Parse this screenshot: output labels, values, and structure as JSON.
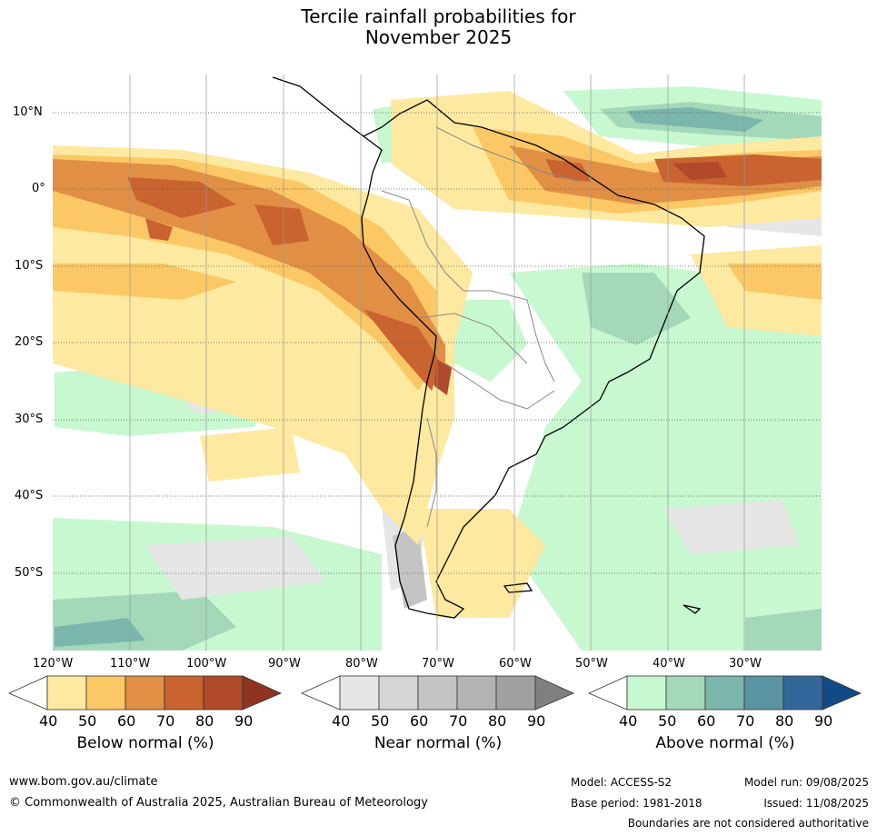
{
  "title": {
    "line1": "Tercile rainfall probabilities for",
    "line2": "November 2025"
  },
  "map": {
    "lat_labels": [
      "10°N",
      "0°",
      "10°S",
      "20°S",
      "30°S",
      "40°S",
      "50°S"
    ],
    "lon_labels": [
      "120°W",
      "110°W",
      "100°W",
      "90°W",
      "80°W",
      "70°W",
      "60°W",
      "50°W",
      "40°W",
      "30°W"
    ],
    "lon_range": [
      -120,
      -20
    ],
    "lat_range": [
      -60,
      15
    ]
  },
  "colorbars": [
    {
      "label": "Below normal (%)",
      "ticks": [
        "40",
        "50",
        "60",
        "70",
        "80",
        "90"
      ],
      "colors": [
        "#ffffff",
        "#fde9a0",
        "#fbc865",
        "#e08f45",
        "#c9632f",
        "#b04a2a",
        "#8e3420"
      ]
    },
    {
      "label": "Near normal (%)",
      "ticks": [
        "40",
        "50",
        "60",
        "70",
        "80",
        "90"
      ],
      "colors": [
        "#ffffff",
        "#e6e6e6",
        "#d5d5d5",
        "#c4c4c4",
        "#b3b3b3",
        "#a0a0a0",
        "#808080"
      ]
    },
    {
      "label": "Above normal (%)",
      "ticks": [
        "40",
        "50",
        "60",
        "70",
        "80",
        "90"
      ],
      "colors": [
        "#ffffff",
        "#c7f8cf",
        "#a3d9b9",
        "#7ab6ac",
        "#5a93a1",
        "#336699",
        "#124a85"
      ]
    }
  ],
  "footer": {
    "website": "www.bom.gov.au/climate",
    "copyright": "© Commonwealth of Australia 2025, Australian Bureau of Meteorology",
    "model": "Model: ACCESS-S2",
    "base_period": "Base period: 1981-2018",
    "model_run": "Model run: 09/08/2025",
    "issued": "Issued: 11/08/2025",
    "disclaimer": "Boundaries are not considered authoritative"
  }
}
